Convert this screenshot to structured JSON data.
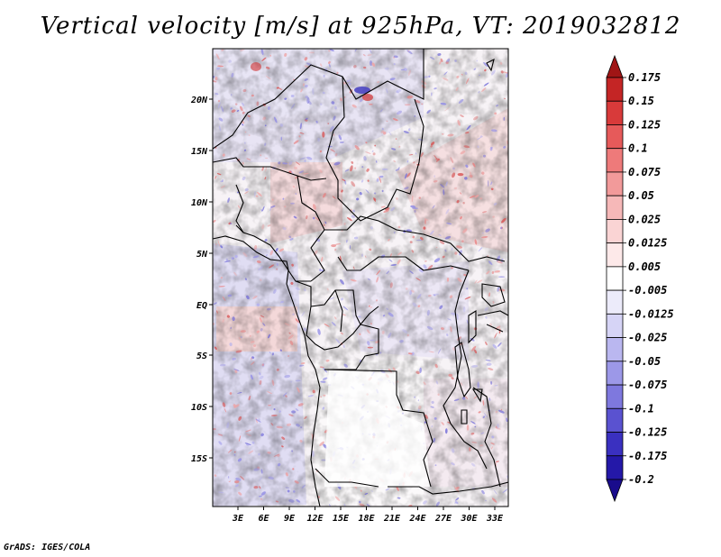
{
  "title": "Vertical velocity [m/s] at 925hPa, VT: 2019032812",
  "credit": "GrADS: IGES/COLA",
  "map": {
    "lat_labels": [
      "20N",
      "15N",
      "10N",
      "5N",
      "EQ",
      "5S",
      "10S",
      "15S"
    ],
    "lon_labels": [
      "3E",
      "6E",
      "9E",
      "12E",
      "15E",
      "18E",
      "21E",
      "24E",
      "27E",
      "30E",
      "33E"
    ]
  },
  "colorbar": {
    "levels": [
      "0.175",
      "0.15",
      "0.125",
      "0.1",
      "0.075",
      "0.05",
      "0.025",
      "0.0125",
      "0.005",
      "-0.005",
      "-0.0125",
      "-0.025",
      "-0.05",
      "-0.075",
      "-0.1",
      "-0.125",
      "-0.175",
      "-0.2"
    ],
    "colors": [
      "#a01515",
      "#c42525",
      "#d83a3a",
      "#e65a5a",
      "#ee7a7a",
      "#f29a9a",
      "#f6b8b8",
      "#fad4d4",
      "#fde9e9",
      "#ffffff",
      "#ecebfa",
      "#d6d4f6",
      "#bab7f0",
      "#9c98e8",
      "#7e78de",
      "#5a52d0",
      "#3a30c0",
      "#2418a8",
      "#190c8c"
    ]
  }
}
